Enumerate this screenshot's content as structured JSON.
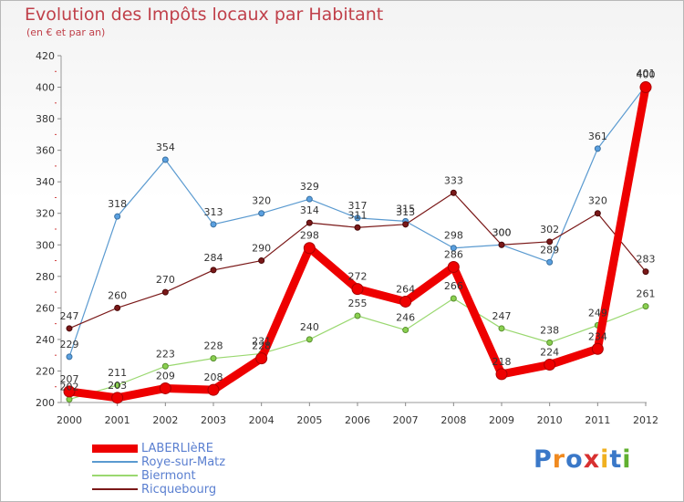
{
  "title": "Evolution des Impôts locaux par Habitant",
  "subtitle": "(en € et par an)",
  "logo": "Proxiti",
  "chart_data": {
    "type": "line",
    "x": [
      "2000",
      "2001",
      "2002",
      "2003",
      "2004",
      "2005",
      "2006",
      "2007",
      "2008",
      "2009",
      "2010",
      "2011",
      "2012"
    ],
    "ylim": [
      200,
      420
    ],
    "yticks": [
      200,
      220,
      240,
      260,
      280,
      300,
      320,
      340,
      360,
      380,
      400,
      420
    ],
    "grid": false,
    "legend_position": "bottom-left",
    "series": [
      {
        "name": "LABERLIèRE",
        "color": "#ee0000",
        "values": [
          207,
          203,
          209,
          208,
          228,
          298,
          272,
          264,
          286,
          218,
          224,
          234,
          400
        ]
      },
      {
        "name": "Roye-sur-Matz",
        "color": "#5a9ad0",
        "values": [
          229,
          318,
          354,
          313,
          320,
          329,
          317,
          315,
          298,
          300,
          289,
          361,
          401
        ]
      },
      {
        "name": "Biermont",
        "color": "#9ad870",
        "values": [
          202,
          211,
          223,
          228,
          231,
          240,
          255,
          246,
          266,
          247,
          238,
          249,
          261
        ]
      },
      {
        "name": "Ricquebourg",
        "color": "#7a1818",
        "values": [
          247,
          260,
          270,
          284,
          290,
          314,
          311,
          313,
          333,
          300,
          302,
          320,
          283
        ]
      }
    ]
  }
}
